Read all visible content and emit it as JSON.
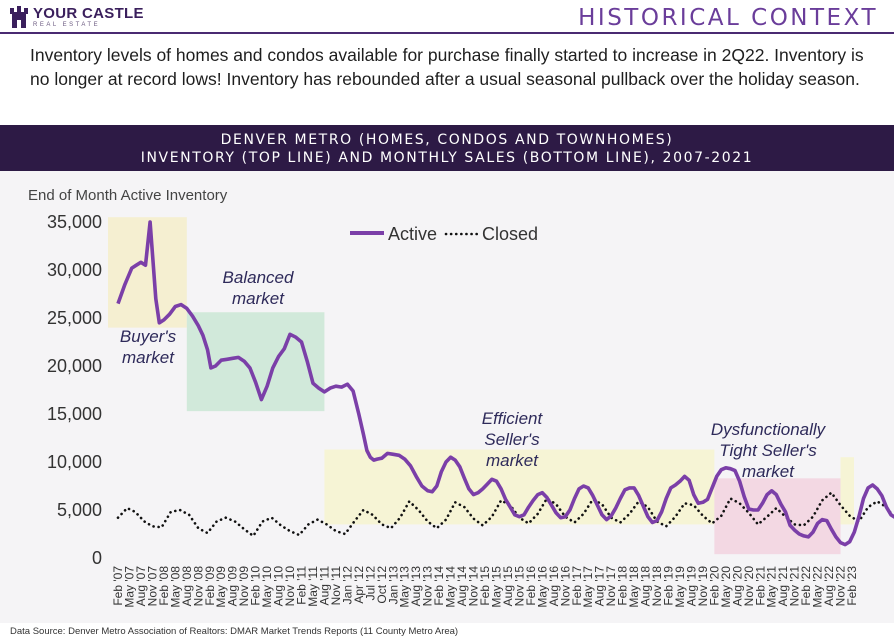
{
  "header": {
    "logo_main": "YOUR CASTLE",
    "logo_sub": "REAL ESTATE",
    "title": "HISTORICAL CONTEXT",
    "intro": "Inventory levels of homes and condos available for purchase finally started to increase in 2Q22. Inventory is no longer at record lows! Inventory has rebounded after a usual seasonal pullback over the holiday season."
  },
  "banner": {
    "line1": "DENVER METRO (HOMES, CONDOS AND TOWNHOMES)",
    "line2": "INVENTORY (TOP LINE) AND MONTHLY SALES (BOTTOM LINE), 2007-2021"
  },
  "footer": {
    "source": "Data Source: Denver Metro Association of Realtors: DMAR Market Trends Reports (11 County Metro Area)"
  },
  "colors": {
    "active": "#7b3fa8",
    "closed": "#111111",
    "buyers_box": "#f4eecf",
    "balanced_box": "#cfe8d8",
    "efficient_box": "#f6f3d3",
    "dysfunctional_box": "#f2d6e2",
    "banner": "#2d1a45",
    "title": "#6a3d9a"
  },
  "chart_data": {
    "type": "line",
    "ylabel": "End of Month Active Inventory",
    "ylim": [
      0,
      35000
    ],
    "yticks": [
      0,
      5000,
      10000,
      15000,
      20000,
      25000,
      30000,
      35000
    ],
    "ytick_labels": [
      "0",
      "5,000",
      "10,000",
      "15,000",
      "20,000",
      "25,000",
      "30,000",
      "35,000"
    ],
    "x_tick_labels": [
      "Feb '07",
      "May '07",
      "Aug '07",
      "Nov '07",
      "Feb '08",
      "May '08",
      "Aug '08",
      "Nov '08",
      "Feb '09",
      "May '09",
      "Aug '09",
      "Nov '09",
      "Feb '10",
      "May '10",
      "Aug '10",
      "Nov '10",
      "Feb '11",
      "May '11",
      "Aug '11",
      "Nov '11",
      "Jan '12",
      "Apr '12",
      "Jul '12",
      "Oct '12",
      "Jan '13",
      "May '13",
      "Aug '13",
      "Nov '13",
      "Feb '14",
      "May '14",
      "Aug '14",
      "Nov '14",
      "Feb '15",
      "May '15",
      "Aug '15",
      "Nov '15",
      "Feb '16",
      "May '16",
      "Aug '16",
      "Nov '16",
      "Feb '17",
      "May '17",
      "Aug '17",
      "Nov '17",
      "Feb '18",
      "May '18",
      "Aug '18",
      "Nov '18",
      "Feb '19",
      "May '19",
      "Aug '19",
      "Nov '19",
      "Feb '20",
      "May '20",
      "Aug '20",
      "Nov '20",
      "Feb '21",
      "May '21",
      "Aug '21",
      "Nov '21",
      "Feb '22",
      "May '22",
      "Aug '22",
      "Nov '22",
      "Feb '23"
    ],
    "legend": {
      "position": "top-center",
      "entries": [
        "Active",
        "Closed"
      ]
    },
    "series": [
      {
        "name": "Active",
        "style": "solid",
        "values": [
          26500,
          28500,
          30200,
          30500,
          30800,
          30500,
          35000,
          27000,
          24500,
          24800,
          25400,
          26200,
          26400,
          26000,
          25200,
          24200,
          23200,
          21700,
          19800,
          20000,
          20600,
          20700,
          20800,
          20900,
          20500,
          19800,
          18300,
          16500,
          17900,
          19800,
          21000,
          21800,
          23300,
          23000,
          22500,
          20500,
          18200,
          17700,
          17300,
          17700,
          17900,
          17800,
          18100,
          17400,
          15000,
          12900,
          11200,
          10500,
          10200,
          10300,
          10400,
          10900,
          10800,
          10700,
          10300,
          9600,
          8500,
          7500,
          7000,
          6900,
          7500,
          9000,
          10000,
          10500,
          10200,
          9500,
          8300,
          7200,
          6600,
          6800,
          7200,
          7700,
          8200,
          8000,
          7200,
          6100,
          5300,
          4500,
          4300,
          4500,
          5300,
          6000,
          6600,
          6800,
          6300,
          5500,
          4700,
          4200,
          4300,
          5000,
          6200,
          7200,
          7500,
          7300,
          6500,
          5500,
          4500,
          4000,
          4400,
          5200,
          6200,
          7100,
          7300,
          7300,
          6500,
          5400,
          4300,
          3700,
          3900,
          4800,
          6200,
          7300,
          7600,
          8000,
          8500,
          8100,
          6600,
          5700,
          5800,
          6100,
          7300,
          8500,
          9200,
          9400,
          9300,
          9100,
          8000,
          6400,
          5100,
          5000,
          5000,
          5700,
          6600,
          7000,
          6600,
          5600,
          4800,
          3400,
          2900,
          2500,
          2300,
          2200,
          2700,
          3600,
          4000,
          3900,
          3000,
          2200,
          1600,
          1400,
          1700,
          2700,
          4300,
          6200,
          7300,
          7600,
          7200,
          6500,
          5300,
          4500,
          4200,
          4500
        ],
        "x": [
          0,
          0.6,
          1.2,
          1.6,
          2.0,
          2.4,
          2.8,
          3.3,
          3.6,
          4.0,
          4.5,
          5.0,
          5.5,
          6.0,
          6.5,
          7.0,
          7.4,
          7.8,
          8.1,
          8.5,
          9.0,
          9.5,
          10.0,
          10.5,
          11.0,
          11.5,
          12.0,
          12.5,
          13.0,
          13.5,
          14.0,
          14.5,
          15.0,
          15.5,
          16.0,
          16.5,
          17.0,
          17.5,
          18.0,
          18.5,
          19.0,
          19.5,
          20.0,
          20.5,
          21.0,
          21.4,
          21.7,
          22.0,
          22.3,
          22.6,
          23.0,
          23.5,
          24.0,
          24.5,
          25.0,
          25.5,
          26.0,
          26.5,
          27.0,
          27.4,
          27.8,
          28.2,
          28.6,
          29.0,
          29.4,
          29.8,
          30.2,
          30.6,
          31.0,
          31.4,
          31.8,
          32.2,
          32.6,
          33.0,
          33.4,
          33.8,
          34.2,
          34.6,
          35.0,
          35.4,
          35.8,
          36.2,
          36.6,
          37.0,
          37.4,
          37.8,
          38.2,
          38.6,
          39.0,
          39.4,
          39.8,
          40.2,
          40.6,
          41.0,
          41.4,
          41.8,
          42.2,
          42.6,
          43.0,
          43.4,
          43.8,
          44.2,
          44.6,
          45.0,
          45.4,
          45.8,
          46.2,
          46.6,
          47.0,
          47.4,
          47.8,
          48.2,
          48.6,
          49.0,
          49.4,
          49.8,
          50.2,
          50.6,
          51.0,
          51.4,
          51.8,
          52.2,
          52.6,
          53.0,
          53.4,
          53.8,
          54.2,
          54.6,
          55.0,
          55.4,
          55.8,
          56.2,
          56.6,
          57.0,
          57.4,
          57.8,
          58.2,
          58.6,
          59.0,
          59.4,
          59.8,
          60.2,
          60.6,
          61.0,
          61.4,
          61.8,
          62.2,
          62.6,
          63.0,
          63.4,
          63.8,
          64.2,
          64.6,
          65.0,
          65.4,
          65.8,
          66.2,
          66.6,
          67.0,
          67.4,
          67.8,
          68.2
        ]
      },
      {
        "name": "Closed",
        "style": "dotted",
        "x": [
          0,
          0.8,
          1.5,
          2.3,
          3.0,
          3.8,
          4.6,
          5.4,
          6.2,
          7.0,
          7.8,
          8.6,
          9.4,
          10.2,
          11.0,
          11.8,
          12.6,
          13.4,
          14.2,
          15.0,
          15.8,
          16.6,
          17.4,
          18.2,
          19.0,
          19.8,
          20.6,
          21.4,
          22.2,
          23.0,
          23.8,
          24.6,
          25.4,
          26.2,
          27.0,
          27.8,
          28.6,
          29.4,
          30.2,
          31.0,
          31.8,
          32.6,
          33.4,
          34.2,
          35.0,
          35.8,
          36.6,
          37.4,
          38.2,
          39.0,
          39.8,
          40.6,
          41.4,
          42.2,
          43.0,
          43.8,
          44.6,
          45.4,
          46.2,
          47.0,
          47.8,
          48.6,
          49.4,
          50.2,
          51.0,
          51.8,
          52.6,
          53.4,
          54.2,
          55.0,
          55.8,
          56.6,
          57.4,
          58.2,
          59.0,
          59.8,
          60.6,
          61.4,
          62.2,
          63.0,
          63.8,
          64.6,
          65.4,
          66.2,
          67.0,
          67.8
        ],
        "values": [
          4200,
          5200,
          4800,
          3800,
          3300,
          3200,
          4800,
          5000,
          4500,
          3100,
          2600,
          3800,
          4200,
          3800,
          3000,
          2300,
          3800,
          4200,
          3400,
          2800,
          2400,
          3500,
          4000,
          3500,
          2800,
          2500,
          3800,
          5000,
          4500,
          3500,
          3100,
          4200,
          5900,
          5000,
          3800,
          3100,
          4000,
          5800,
          5300,
          4100,
          3400,
          4300,
          6000,
          5500,
          4200,
          3600,
          4600,
          6200,
          5600,
          4300,
          3700,
          4600,
          6100,
          5600,
          4200,
          3700,
          4600,
          5900,
          5300,
          3800,
          3300,
          4300,
          5700,
          5500,
          4400,
          3600,
          4400,
          6200,
          5700,
          4700,
          3500,
          4300,
          5200,
          4300,
          3500,
          3400,
          4300,
          6000,
          6800,
          5500,
          4400,
          3800,
          5300,
          5900,
          5300,
          4000
        ]
      }
    ],
    "annotations": [
      "Buyer's\nmarket",
      "Balanced\nmarket",
      "Efficient\nSeller's\nmarket",
      "Dysfunctionally\nTight Seller's\nmarket"
    ],
    "regions": [
      {
        "label": "Buyer's market",
        "from_label": "Feb '07",
        "to_label": "Aug '08",
        "ymin": 24000,
        "ymax": 35500
      },
      {
        "label": "Balanced market",
        "from_label": "Aug '08",
        "to_label": "Aug '11",
        "ymin": 15300,
        "ymax": 25600
      },
      {
        "label": "Efficient Seller's market",
        "from_label": "Aug '11",
        "to_label": "Feb '20",
        "ymin": 3500,
        "ymax": 11300
      },
      {
        "label": "Dysfunctionally Tight Seller's market",
        "from_label": "Feb '20",
        "to_label": "Nov '22",
        "ymin": 400,
        "ymax": 8300
      },
      {
        "label": "Efficient Seller's market (post)",
        "from_label": "Nov '22",
        "to_label": "Feb '23",
        "ymin": 3500,
        "ymax": 10500
      }
    ]
  }
}
